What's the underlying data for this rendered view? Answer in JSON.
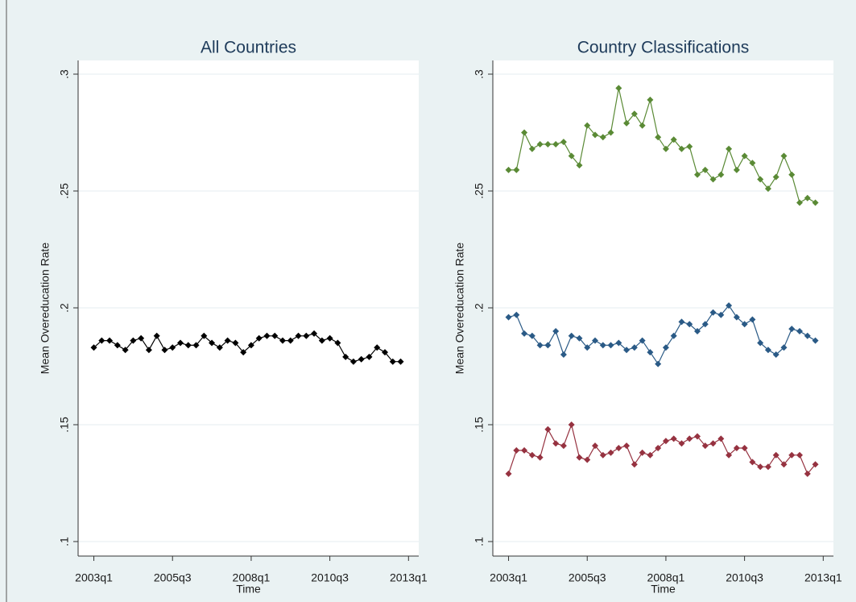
{
  "chart_data": [
    {
      "type": "line",
      "title": "All Countries",
      "x_label": "Time",
      "y_label": "Mean Overeducation Rate",
      "x": [
        "2003q1",
        "2003q2",
        "2003q3",
        "2003q4",
        "2004q1",
        "2004q2",
        "2004q3",
        "2004q4",
        "2005q1",
        "2005q2",
        "2005q3",
        "2005q4",
        "2006q1",
        "2006q2",
        "2006q3",
        "2006q4",
        "2007q1",
        "2007q2",
        "2007q3",
        "2007q4",
        "2008q1",
        "2008q2",
        "2008q3",
        "2008q4",
        "2009q1",
        "2009q2",
        "2009q3",
        "2009q4",
        "2010q1",
        "2010q2",
        "2010q3",
        "2010q4",
        "2011q1",
        "2011q2",
        "2011q3",
        "2011q4",
        "2012q1",
        "2012q2",
        "2012q3",
        "2012q4"
      ],
      "series": [
        {
          "color": "#000000",
          "values": [
            0.183,
            0.186,
            0.186,
            0.184,
            0.182,
            0.186,
            0.187,
            0.182,
            0.188,
            0.182,
            0.183,
            0.185,
            0.184,
            0.184,
            0.188,
            0.185,
            0.183,
            0.186,
            0.185,
            0.181,
            0.184,
            0.187,
            0.188,
            0.188,
            0.186,
            0.186,
            0.188,
            0.188,
            0.189,
            0.186,
            0.187,
            0.185,
            0.179,
            0.177,
            0.178,
            0.179,
            0.183,
            0.181,
            0.177,
            0.177
          ]
        }
      ],
      "xticks": [
        "2003q1",
        "2005q3",
        "2008q1",
        "2010q3",
        "2013q1"
      ],
      "ylim": [
        0.1,
        0.3
      ],
      "yticks": [
        {
          "value": 0.1,
          "label": ".1"
        },
        {
          "value": 0.15,
          "label": ".15"
        },
        {
          "value": 0.2,
          "label": ".2"
        },
        {
          "value": 0.25,
          "label": ".25"
        },
        {
          "value": 0.3,
          "label": ".3"
        }
      ],
      "grid": true
    },
    {
      "type": "line",
      "title": "Country Classifications",
      "x_label": "Time",
      "y_label": "Mean Overeducation Rate",
      "x": [
        "2003q1",
        "2003q2",
        "2003q3",
        "2003q4",
        "2004q1",
        "2004q2",
        "2004q3",
        "2004q4",
        "2005q1",
        "2005q2",
        "2005q3",
        "2005q4",
        "2006q1",
        "2006q2",
        "2006q3",
        "2006q4",
        "2007q1",
        "2007q2",
        "2007q3",
        "2007q4",
        "2008q1",
        "2008q2",
        "2008q3",
        "2008q4",
        "2009q1",
        "2009q2",
        "2009q3",
        "2009q4",
        "2010q1",
        "2010q2",
        "2010q3",
        "2010q4",
        "2011q1",
        "2011q2",
        "2011q3",
        "2011q4",
        "2012q1",
        "2012q2",
        "2012q3",
        "2012q4"
      ],
      "series": [
        {
          "color": "#5a8a35",
          "values": [
            0.259,
            0.259,
            0.275,
            0.268,
            0.27,
            0.27,
            0.27,
            0.271,
            0.265,
            0.261,
            0.278,
            0.274,
            0.273,
            0.275,
            0.294,
            0.279,
            0.283,
            0.278,
            0.289,
            0.273,
            0.268,
            0.272,
            0.268,
            0.269,
            0.257,
            0.259,
            0.255,
            0.257,
            0.268,
            0.259,
            0.265,
            0.262,
            0.255,
            0.251,
            0.256,
            0.265,
            0.257,
            0.245,
            0.247,
            0.245
          ]
        },
        {
          "color": "#2a5a86",
          "values": [
            0.196,
            0.197,
            0.189,
            0.188,
            0.184,
            0.184,
            0.19,
            0.18,
            0.188,
            0.187,
            0.183,
            0.186,
            0.184,
            0.184,
            0.185,
            0.182,
            0.183,
            0.186,
            0.181,
            0.176,
            0.183,
            0.188,
            0.194,
            0.193,
            0.19,
            0.193,
            0.198,
            0.197,
            0.201,
            0.196,
            0.193,
            0.195,
            0.185,
            0.182,
            0.18,
            0.183,
            0.191,
            0.19,
            0.188,
            0.186
          ]
        },
        {
          "color": "#963240",
          "values": [
            0.129,
            0.139,
            0.139,
            0.137,
            0.136,
            0.148,
            0.142,
            0.141,
            0.15,
            0.136,
            0.135,
            0.141,
            0.137,
            0.138,
            0.14,
            0.141,
            0.133,
            0.138,
            0.137,
            0.14,
            0.143,
            0.144,
            0.142,
            0.144,
            0.145,
            0.141,
            0.142,
            0.144,
            0.137,
            0.14,
            0.14,
            0.134,
            0.132,
            0.132,
            0.137,
            0.133,
            0.137,
            0.137,
            0.129,
            0.133
          ]
        }
      ],
      "xticks": [
        "2003q1",
        "2005q3",
        "2008q1",
        "2010q3",
        "2013q1"
      ],
      "ylim": [
        0.1,
        0.3
      ],
      "yticks": [
        {
          "value": 0.1,
          "label": ".1"
        },
        {
          "value": 0.15,
          "label": ".15"
        },
        {
          "value": 0.2,
          "label": ".2"
        },
        {
          "value": 0.25,
          "label": ".25"
        },
        {
          "value": 0.3,
          "label": ".3"
        }
      ],
      "grid": true
    }
  ]
}
